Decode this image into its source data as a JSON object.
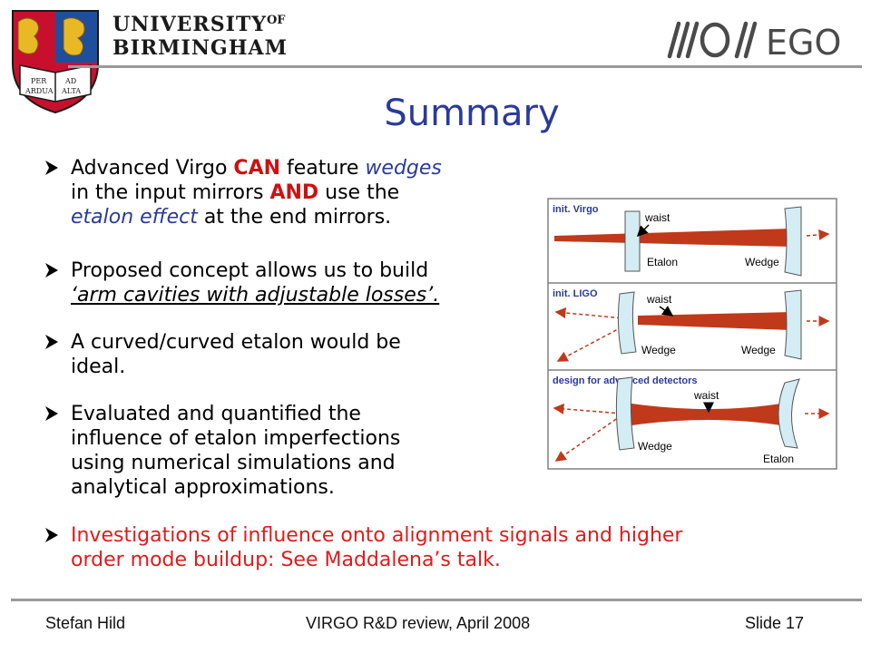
{
  "header": {
    "university_line1": "UNIVERSITY",
    "university_of": "OF",
    "university_line2": "BIRMINGHAM",
    "crest_motto_left": [
      "PER",
      "ARDUA"
    ],
    "crest_motto_right": [
      "AD",
      "ALTA"
    ],
    "ego_text": "EGO"
  },
  "title": "Summary",
  "bullets": [
    {
      "lines": [
        [
          {
            "t": "Advanced Virgo "
          },
          {
            "t": "CAN",
            "s": "red"
          },
          {
            "t": " feature "
          },
          {
            "t": "wedges",
            "s": "blue-it"
          }
        ],
        [
          {
            "t": "in the input mirrors "
          },
          {
            "t": "AND",
            "s": "red"
          },
          {
            "t": " use the"
          }
        ],
        [
          {
            "t": "etalon effect",
            "s": "blue-it"
          },
          {
            "t": " at the end mirrors."
          }
        ]
      ]
    },
    {
      "lines": [
        [
          {
            "t": "Proposed concept allows us to build"
          }
        ],
        [
          {
            "t": "‘arm cavities with adjustable losses’.",
            "s": "und"
          }
        ]
      ]
    },
    {
      "lines": [
        [
          {
            "t": "A curved/curved etalon would be"
          }
        ],
        [
          {
            "t": "ideal."
          }
        ]
      ]
    },
    {
      "lines": [
        [
          {
            "t": "Evaluated and quantified the"
          }
        ],
        [
          {
            "t": "influence of etalon imperfections"
          }
        ],
        [
          {
            "t": "using numerical simulations and"
          }
        ],
        [
          {
            "t": "analytical approximations."
          }
        ]
      ]
    },
    {
      "lines": [
        [
          {
            "t": "Investigations of influence onto alignment signals and higher",
            "s": "redtxt"
          }
        ],
        [
          {
            "t": "order mode buildup: See Maddalena’s talk.",
            "s": "redtxt"
          }
        ]
      ]
    }
  ],
  "diagram": {
    "panels": [
      {
        "heading": "init. Virgo",
        "labels": [
          "waist",
          "Etalon",
          "Wedge"
        ]
      },
      {
        "heading": "init. LIGO",
        "labels": [
          "waist",
          "Wedge",
          "Wedge"
        ]
      },
      {
        "heading": "design for advanced detectors",
        "labels": [
          "waist",
          "Wedge",
          "Etalon"
        ]
      }
    ],
    "colors": {
      "beam": "#c0391b",
      "heading": "#2a3a9c",
      "mirror": "#d4ecf4",
      "frame": "#808080"
    }
  },
  "footer": {
    "author": "Stefan Hild",
    "event": "VIRGO R&D review, April 2008",
    "slide": "Slide 17"
  },
  "colors": {
    "title": "#2a3a9c",
    "emphasis": "#cc1111",
    "note": "#e01b1b",
    "rule": "#9a9a9a"
  }
}
